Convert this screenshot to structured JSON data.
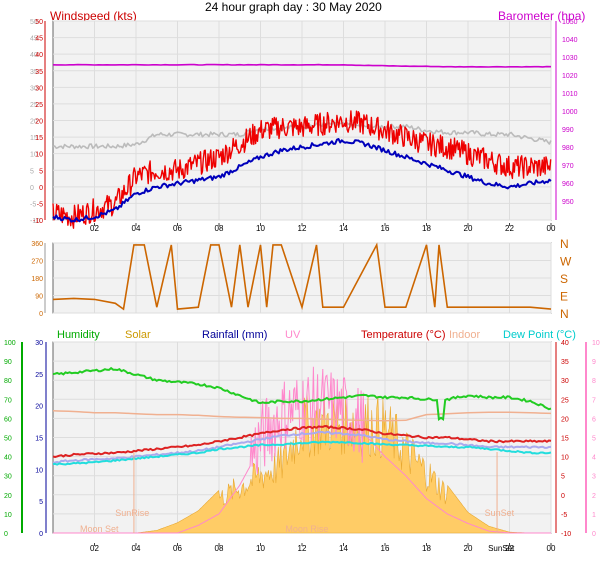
{
  "title": "24 hour graph day : 30 May 2020",
  "panel1": {
    "left_label": "Windspeed (kts)",
    "right_label": "Barometer (hpa)",
    "colors": {
      "left": "#cc0000",
      "right": "#cc00cc"
    },
    "left_ticks": [
      "50",
      "45",
      "40",
      "35",
      "30",
      "25",
      "20",
      "15",
      "10",
      "5",
      "0",
      "-5",
      "-10"
    ],
    "right_ticks": [
      "1050",
      "1040",
      "1030",
      "1020",
      "1010",
      "1000",
      "990",
      "980",
      "970",
      "960",
      "950"
    ]
  },
  "panel2": {
    "dir_ticks": [
      "360",
      "270",
      "180",
      "90",
      "0"
    ],
    "compass": [
      "N",
      "W",
      "S",
      "E",
      "N"
    ]
  },
  "panel3": {
    "legend": [
      {
        "label": "Humidity",
        "color": "#00aa00"
      },
      {
        "label": "Solar",
        "color": "#cc9900"
      },
      {
        "label": "Rainfall (mm)",
        "color": "#000099"
      },
      {
        "label": "UV",
        "color": "#ff88cc"
      },
      {
        "label": "Temperature (°C)",
        "color": "#cc0000"
      },
      {
        "label": "Indoor",
        "color": "#f0b090"
      },
      {
        "label": "Dew Point (°C)",
        "color": "#00cccc"
      }
    ],
    "humidity_ticks": [
      "100",
      "90",
      "80",
      "70",
      "60",
      "50",
      "40",
      "30",
      "20",
      "10",
      "0"
    ],
    "rain_ticks": [
      "30",
      "25",
      "20",
      "15",
      "10",
      "5",
      "0"
    ],
    "temp_ticks": [
      "40",
      "35",
      "30",
      "25",
      "20",
      "15",
      "10",
      "5",
      "0",
      "-5",
      "-10"
    ],
    "uv_ticks": [
      "10",
      "9",
      "8",
      "7",
      "6",
      "5",
      "4",
      "3",
      "2",
      "1",
      "0"
    ],
    "annotations": [
      "SunRise",
      "SunSet",
      "Moon Set",
      "Moon Rise"
    ],
    "x_extra_label": "SunSet"
  },
  "x_ticks": [
    "02",
    "04",
    "06",
    "08",
    "10",
    "12",
    "14",
    "16",
    "18",
    "20",
    "22",
    "00"
  ],
  "chart_data": [
    {
      "type": "line",
      "x_hours": [
        0,
        1,
        2,
        3,
        4,
        5,
        6,
        7,
        8,
        9,
        10,
        11,
        12,
        13,
        14,
        15,
        16,
        17,
        18,
        19,
        20,
        21,
        22,
        23,
        24
      ],
      "series": [
        {
          "name": "Windspeed (kts)",
          "unit": "kts",
          "color": "#ee0000",
          "values": [
            -8,
            -9,
            -7,
            -5,
            3,
            5,
            5,
            7,
            9,
            13,
            17,
            18,
            18,
            19,
            20,
            19,
            17,
            15,
            13,
            12,
            10,
            8,
            6,
            6,
            6
          ]
        },
        {
          "name": "Windspeed (kts)",
          "unit": "kts",
          "color": "#0000bb",
          "values": [
            -9,
            -10,
            -9,
            -7,
            -2,
            0,
            1,
            2,
            3,
            6,
            9,
            11,
            12,
            13,
            14,
            13,
            11,
            9,
            7,
            5,
            3,
            1,
            0,
            1,
            2
          ]
        },
        {
          "name": "Barometer (hpa)",
          "unit": "hpa",
          "color": "#cc00cc",
          "values": [
            1028,
            1028,
            1028,
            1028,
            1028,
            1028,
            1028,
            1028,
            1028,
            1028,
            1028,
            1028,
            1028,
            1028,
            1028,
            1027.7,
            1027.5,
            1027.3,
            1027.2,
            1027,
            1027,
            1027,
            1027,
            1027,
            1027
          ]
        },
        {
          "name": "Barometer (hpa)",
          "unit": "hpa",
          "color": "#bbbbbb",
          "values": [
            987,
            987,
            987,
            987,
            988,
            993,
            993,
            993,
            993,
            993,
            996,
            996,
            997,
            998,
            998,
            997,
            997,
            997,
            995,
            994,
            994,
            993,
            993,
            991,
            989
          ]
        }
      ],
      "xlim": [
        0,
        24
      ],
      "ylim_left": [
        -10,
        50
      ],
      "ylim_right": [
        950,
        1050
      ]
    },
    {
      "type": "line",
      "x_hours": [
        0,
        1,
        2,
        3,
        3.4,
        3.9,
        4.4,
        5,
        5.7,
        6,
        7,
        7.6,
        8,
        8.6,
        9,
        9.4,
        10,
        10.3,
        10.6,
        11,
        12,
        12.7,
        13,
        14,
        15.6,
        16,
        17,
        18,
        18.4,
        18.6,
        19,
        20,
        21,
        22,
        23,
        24
      ],
      "series": [
        {
          "name": "Wind direction",
          "unit": "deg",
          "color": "#cc6600",
          "values": [
            70,
            75,
            70,
            50,
            20,
            350,
            350,
            30,
            350,
            20,
            30,
            350,
            350,
            30,
            350,
            30,
            350,
            30,
            350,
            350,
            30,
            350,
            30,
            30,
            350,
            30,
            30,
            350,
            30,
            350,
            30,
            30,
            30,
            30,
            30,
            20
          ]
        }
      ],
      "xlim": [
        0,
        24
      ],
      "ylim": [
        0,
        360
      ]
    },
    {
      "type": "area",
      "x_hours": [
        0,
        1,
        2,
        3,
        4,
        5,
        6,
        7,
        8,
        9,
        10,
        11,
        12,
        13,
        14,
        15,
        16,
        17,
        18,
        19,
        20,
        21,
        22,
        23,
        24
      ],
      "series": [
        {
          "name": "Humidity",
          "unit": "%",
          "color": "#22cc22",
          "values": [
            83,
            84,
            85,
            86,
            83,
            80,
            79,
            78,
            76,
            72,
            68,
            69,
            69,
            70,
            71,
            72,
            71,
            71,
            70,
            70,
            72,
            71,
            71,
            69,
            65
          ]
        },
        {
          "name": "Temperature (°C)",
          "unit": "°C",
          "color": "#dd2222",
          "values": [
            10,
            10.5,
            10.8,
            11,
            11.5,
            12,
            12.5,
            13,
            14,
            15,
            16,
            17,
            17.5,
            17.8,
            17.5,
            17,
            16,
            15.5,
            15,
            15,
            14.5,
            14,
            14,
            14,
            14
          ]
        },
        {
          "name": "Dew Point (°C)",
          "unit": "°C",
          "color": "#22dddd",
          "values": [
            8,
            8.2,
            8.5,
            9,
            9.5,
            10,
            10.5,
            11,
            12,
            12.5,
            13,
            13.2,
            13.5,
            13.8,
            13.8,
            13.5,
            13.2,
            13,
            12.8,
            12.5,
            12.5,
            12,
            11.5,
            11,
            11
          ]
        },
        {
          "name": "Indoor",
          "unit": "°C",
          "color": "#f0b090",
          "values": [
            22,
            21.8,
            21.5,
            21.5,
            21.2,
            21,
            21,
            20.8,
            20.5,
            20.3,
            20.2,
            20,
            20,
            19.8,
            19.6,
            19.5,
            19.4,
            19.5,
            21,
            21.2,
            21.5,
            21.6,
            21.6,
            21.5,
            21.3
          ]
        },
        {
          "name": "Solar",
          "unit": "W/m²",
          "color": "#ffcc66",
          "values": [
            0,
            0,
            0,
            0,
            0,
            15,
            60,
            130,
            250,
            330,
            420,
            500,
            780,
            800,
            820,
            800,
            760,
            600,
            440,
            280,
            120,
            40,
            5,
            0,
            0
          ]
        },
        {
          "name": "UV",
          "unit": "index",
          "color": "#ff88cc",
          "values": [
            0,
            0,
            0,
            0,
            0,
            0,
            0,
            0.4,
            1.0,
            2.5,
            4.5,
            5.8,
            6.2,
            6.4,
            6.0,
            5.2,
            4.0,
            3.0,
            1.8,
            1.0,
            0.5,
            0.1,
            0,
            0,
            0
          ]
        }
      ],
      "xlim": [
        0,
        24
      ],
      "ylim_humidity": [
        0,
        100
      ],
      "ylim_rain": [
        0,
        30
      ],
      "ylim_temp": [
        -10,
        40
      ],
      "ylim_uv": [
        0,
        10
      ]
    }
  ]
}
